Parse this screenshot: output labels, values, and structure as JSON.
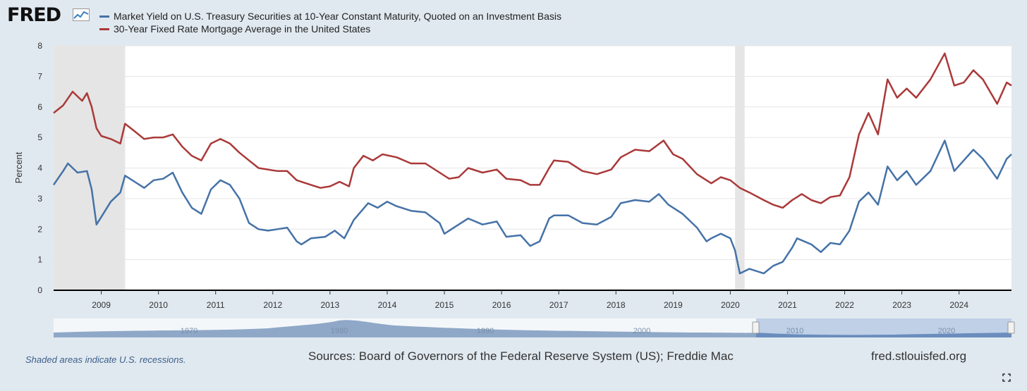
{
  "brand": {
    "logo_text": "FRED",
    "logo_icon": "line-chart-icon"
  },
  "footer": {
    "recession_note": "Shaded areas indicate U.S. recessions.",
    "sources": "Sources: Board of Governors of the Federal Reserve System (US); Freddie Mac",
    "url": "fred.stlouisfed.org"
  },
  "navigator": {
    "labels": [
      "1970",
      "1980",
      "1990",
      "2000",
      "2010",
      "2020"
    ]
  },
  "chart_data": {
    "type": "line",
    "ylabel": "Percent",
    "xlim": [
      "2008-03",
      "2024-12"
    ],
    "ylim": [
      0,
      8
    ],
    "y_ticks": [
      0,
      1,
      2,
      3,
      4,
      5,
      6,
      7,
      8
    ],
    "x_ticks": [
      "2009",
      "2010",
      "2011",
      "2012",
      "2013",
      "2014",
      "2015",
      "2016",
      "2017",
      "2018",
      "2019",
      "2020",
      "2021",
      "2022",
      "2023",
      "2024"
    ],
    "grid": true,
    "legend_placement": "top-left",
    "recessions": [
      [
        "2008-03",
        "2009-06"
      ],
      [
        "2020-02",
        "2020-04"
      ]
    ],
    "series": [
      {
        "name": "Market Yield on U.S. Treasury Securities at 10-Year Constant Maturity, Quoted on an Investment Basis",
        "color": "#4572a7",
        "points": [
          [
            "2008-03",
            3.45
          ],
          [
            "2008-05",
            3.9
          ],
          [
            "2008-06",
            4.15
          ],
          [
            "2008-08",
            3.85
          ],
          [
            "2008-10",
            3.9
          ],
          [
            "2008-11",
            3.3
          ],
          [
            "2008-12",
            2.15
          ],
          [
            "2009-01",
            2.4
          ],
          [
            "2009-03",
            2.9
          ],
          [
            "2009-05",
            3.2
          ],
          [
            "2009-06",
            3.75
          ],
          [
            "2009-08",
            3.55
          ],
          [
            "2009-10",
            3.35
          ],
          [
            "2009-12",
            3.6
          ],
          [
            "2010-02",
            3.65
          ],
          [
            "2010-04",
            3.85
          ],
          [
            "2010-06",
            3.2
          ],
          [
            "2010-08",
            2.7
          ],
          [
            "2010-10",
            2.5
          ],
          [
            "2010-12",
            3.3
          ],
          [
            "2011-02",
            3.6
          ],
          [
            "2011-04",
            3.45
          ],
          [
            "2011-06",
            3.0
          ],
          [
            "2011-08",
            2.2
          ],
          [
            "2011-10",
            2.0
          ],
          [
            "2011-12",
            1.95
          ],
          [
            "2012-02",
            2.0
          ],
          [
            "2012-04",
            2.05
          ],
          [
            "2012-06",
            1.6
          ],
          [
            "2012-07",
            1.5
          ],
          [
            "2012-09",
            1.7
          ],
          [
            "2012-12",
            1.75
          ],
          [
            "2013-02",
            1.95
          ],
          [
            "2013-04",
            1.7
          ],
          [
            "2013-06",
            2.3
          ],
          [
            "2013-09",
            2.85
          ],
          [
            "2013-11",
            2.7
          ],
          [
            "2014-01",
            2.9
          ],
          [
            "2014-03",
            2.75
          ],
          [
            "2014-06",
            2.6
          ],
          [
            "2014-09",
            2.55
          ],
          [
            "2014-12",
            2.2
          ],
          [
            "2015-01",
            1.85
          ],
          [
            "2015-03",
            2.05
          ],
          [
            "2015-06",
            2.35
          ],
          [
            "2015-09",
            2.15
          ],
          [
            "2015-12",
            2.25
          ],
          [
            "2016-02",
            1.75
          ],
          [
            "2016-05",
            1.8
          ],
          [
            "2016-07",
            1.45
          ],
          [
            "2016-09",
            1.6
          ],
          [
            "2016-11",
            2.35
          ],
          [
            "2016-12",
            2.45
          ],
          [
            "2017-03",
            2.45
          ],
          [
            "2017-06",
            2.2
          ],
          [
            "2017-09",
            2.15
          ],
          [
            "2017-12",
            2.4
          ],
          [
            "2018-02",
            2.85
          ],
          [
            "2018-05",
            2.95
          ],
          [
            "2018-08",
            2.9
          ],
          [
            "2018-10",
            3.15
          ],
          [
            "2018-12",
            2.8
          ],
          [
            "2019-03",
            2.5
          ],
          [
            "2019-06",
            2.05
          ],
          [
            "2019-08",
            1.6
          ],
          [
            "2019-09",
            1.7
          ],
          [
            "2019-11",
            1.85
          ],
          [
            "2020-01",
            1.7
          ],
          [
            "2020-02",
            1.3
          ],
          [
            "2020-03",
            0.55
          ],
          [
            "2020-05",
            0.7
          ],
          [
            "2020-08",
            0.55
          ],
          [
            "2020-10",
            0.8
          ],
          [
            "2020-12",
            0.93
          ],
          [
            "2021-02",
            1.4
          ],
          [
            "2021-03",
            1.7
          ],
          [
            "2021-06",
            1.5
          ],
          [
            "2021-08",
            1.25
          ],
          [
            "2021-10",
            1.55
          ],
          [
            "2021-12",
            1.5
          ],
          [
            "2022-02",
            1.95
          ],
          [
            "2022-04",
            2.9
          ],
          [
            "2022-06",
            3.2
          ],
          [
            "2022-08",
            2.8
          ],
          [
            "2022-10",
            4.05
          ],
          [
            "2022-12",
            3.6
          ],
          [
            "2023-02",
            3.9
          ],
          [
            "2023-04",
            3.45
          ],
          [
            "2023-07",
            3.9
          ],
          [
            "2023-10",
            4.9
          ],
          [
            "2023-12",
            3.9
          ],
          [
            "2024-02",
            4.25
          ],
          [
            "2024-04",
            4.6
          ],
          [
            "2024-06",
            4.3
          ],
          [
            "2024-09",
            3.65
          ],
          [
            "2024-11",
            4.3
          ],
          [
            "2024-12",
            4.45
          ]
        ]
      },
      {
        "name": "30-Year Fixed Rate Mortgage Average in the United States",
        "color": "#aa3939",
        "points": [
          [
            "2008-03",
            5.8
          ],
          [
            "2008-05",
            6.05
          ],
          [
            "2008-07",
            6.5
          ],
          [
            "2008-09",
            6.2
          ],
          [
            "2008-10",
            6.45
          ],
          [
            "2008-11",
            6.0
          ],
          [
            "2008-12",
            5.3
          ],
          [
            "2009-01",
            5.05
          ],
          [
            "2009-03",
            4.95
          ],
          [
            "2009-05",
            4.8
          ],
          [
            "2009-06",
            5.45
          ],
          [
            "2009-08",
            5.2
          ],
          [
            "2009-10",
            4.95
          ],
          [
            "2009-12",
            5.0
          ],
          [
            "2010-02",
            5.0
          ],
          [
            "2010-04",
            5.1
          ],
          [
            "2010-06",
            4.7
          ],
          [
            "2010-08",
            4.4
          ],
          [
            "2010-10",
            4.25
          ],
          [
            "2010-12",
            4.8
          ],
          [
            "2011-02",
            4.95
          ],
          [
            "2011-04",
            4.8
          ],
          [
            "2011-06",
            4.5
          ],
          [
            "2011-08",
            4.25
          ],
          [
            "2011-10",
            4.0
          ],
          [
            "2011-12",
            3.95
          ],
          [
            "2012-02",
            3.9
          ],
          [
            "2012-04",
            3.9
          ],
          [
            "2012-06",
            3.6
          ],
          [
            "2012-09",
            3.45
          ],
          [
            "2012-11",
            3.35
          ],
          [
            "2013-01",
            3.4
          ],
          [
            "2013-03",
            3.55
          ],
          [
            "2013-05",
            3.4
          ],
          [
            "2013-06",
            4.0
          ],
          [
            "2013-08",
            4.4
          ],
          [
            "2013-10",
            4.25
          ],
          [
            "2013-12",
            4.45
          ],
          [
            "2014-03",
            4.35
          ],
          [
            "2014-06",
            4.15
          ],
          [
            "2014-09",
            4.15
          ],
          [
            "2014-12",
            3.85
          ],
          [
            "2015-02",
            3.65
          ],
          [
            "2015-04",
            3.7
          ],
          [
            "2015-06",
            4.0
          ],
          [
            "2015-09",
            3.85
          ],
          [
            "2015-12",
            3.95
          ],
          [
            "2016-02",
            3.65
          ],
          [
            "2016-05",
            3.6
          ],
          [
            "2016-07",
            3.45
          ],
          [
            "2016-09",
            3.45
          ],
          [
            "2016-11",
            4.0
          ],
          [
            "2016-12",
            4.25
          ],
          [
            "2017-03",
            4.2
          ],
          [
            "2017-06",
            3.9
          ],
          [
            "2017-09",
            3.8
          ],
          [
            "2017-12",
            3.95
          ],
          [
            "2018-02",
            4.35
          ],
          [
            "2018-05",
            4.6
          ],
          [
            "2018-08",
            4.55
          ],
          [
            "2018-11",
            4.9
          ],
          [
            "2019-01",
            4.45
          ],
          [
            "2019-03",
            4.3
          ],
          [
            "2019-06",
            3.8
          ],
          [
            "2019-09",
            3.5
          ],
          [
            "2019-11",
            3.7
          ],
          [
            "2020-01",
            3.6
          ],
          [
            "2020-03",
            3.35
          ],
          [
            "2020-05",
            3.2
          ],
          [
            "2020-08",
            2.95
          ],
          [
            "2020-10",
            2.8
          ],
          [
            "2020-12",
            2.7
          ],
          [
            "2021-02",
            2.95
          ],
          [
            "2021-04",
            3.15
          ],
          [
            "2021-06",
            2.95
          ],
          [
            "2021-08",
            2.85
          ],
          [
            "2021-10",
            3.05
          ],
          [
            "2021-12",
            3.1
          ],
          [
            "2022-02",
            3.7
          ],
          [
            "2022-04",
            5.1
          ],
          [
            "2022-06",
            5.8
          ],
          [
            "2022-08",
            5.1
          ],
          [
            "2022-10",
            6.9
          ],
          [
            "2022-12",
            6.3
          ],
          [
            "2023-02",
            6.6
          ],
          [
            "2023-04",
            6.3
          ],
          [
            "2023-07",
            6.9
          ],
          [
            "2023-10",
            7.75
          ],
          [
            "2023-12",
            6.7
          ],
          [
            "2024-02",
            6.8
          ],
          [
            "2024-04",
            7.2
          ],
          [
            "2024-06",
            6.9
          ],
          [
            "2024-09",
            6.1
          ],
          [
            "2024-11",
            6.8
          ],
          [
            "2024-12",
            6.7
          ]
        ]
      }
    ]
  }
}
